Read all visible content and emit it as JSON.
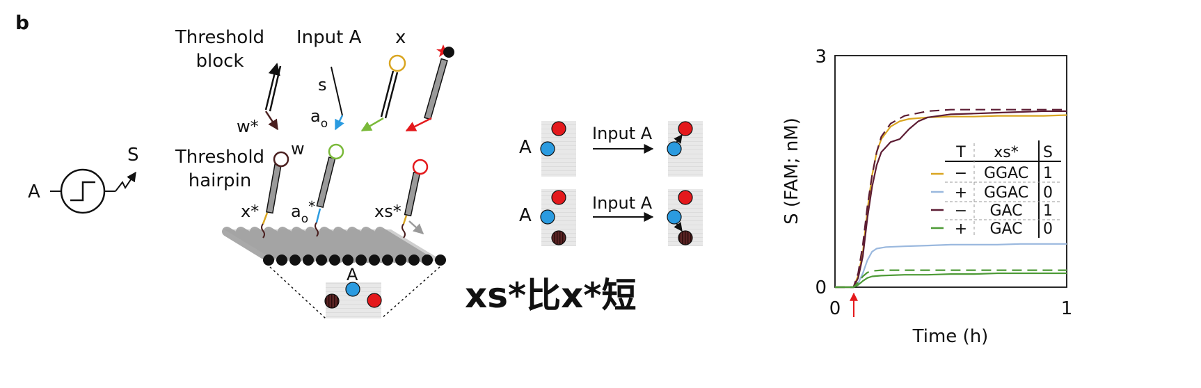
{
  "panel_label": "b",
  "diagram": {
    "input_symbol": "A",
    "output_symbol": "S",
    "threshold_block_lines": [
      "Threshold",
      "block"
    ],
    "input_a_title": "Input A",
    "x_title": "x",
    "s_label": "s",
    "a0_label": "a",
    "a0_sub": "o",
    "wstar_label": "w*",
    "threshold_hairpin_lines": [
      "Threshold",
      "hairpin"
    ],
    "w_label": "w",
    "xstar_label": "x*",
    "a0star_label": "a",
    "a0star_sub": "o",
    "a0star_sup": "*",
    "xsstar_label": "xs*",
    "origami_label": "A",
    "scheme_a_label": "A",
    "scheme_input_label": "Input A",
    "caption_cjk": "xs*比x*短"
  },
  "colors": {
    "blue": "#2b9be0",
    "red": "#e4191c",
    "dark_brown": "#4a1f1f",
    "gold": "#d9a520",
    "light_blue": "#9ab8de",
    "plum": "#5c1c33",
    "green": "#4d9a36",
    "lime": "#7ab93a",
    "gray_strand": "#9a9a9a",
    "panel_gray": "#e6e6e6"
  },
  "chart_data": {
    "type": "line",
    "title": "",
    "xlabel": "Time (h)",
    "ylabel": "S (FAM; nM)",
    "xlim": [
      0,
      1
    ],
    "ylim": [
      0,
      3
    ],
    "x_ticks": [
      "0",
      "1"
    ],
    "y_ticks": [
      "0",
      "3"
    ],
    "marker": "red arrow at t = 0.08 h",
    "table": {
      "headers": [
        "T",
        "xs*",
        "S"
      ],
      "rows": [
        {
          "T": "−",
          "xs": "GGAC",
          "S": "1",
          "color": "#d9a520"
        },
        {
          "T": "+",
          "xs": "GGAC",
          "S": "0",
          "color": "#9ab8de"
        },
        {
          "T": "−",
          "xs": "GAC",
          "S": "1",
          "color": "#5c1c33"
        },
        {
          "T": "+",
          "xs": "GAC",
          "S": "0",
          "color": "#4d9a36"
        }
      ]
    },
    "series": [
      {
        "color": "#d9a520",
        "style": "solid",
        "x": [
          0,
          0.08,
          0.1,
          0.12,
          0.14,
          0.16,
          0.18,
          0.2,
          0.24,
          0.28,
          0.32,
          0.4,
          0.5,
          0.6,
          0.7,
          0.8,
          0.9,
          1.0
        ],
        "y": [
          0,
          0,
          0.15,
          0.45,
          1.0,
          1.45,
          1.75,
          1.92,
          2.08,
          2.15,
          2.18,
          2.2,
          2.21,
          2.21,
          2.22,
          2.22,
          2.22,
          2.23
        ]
      },
      {
        "color": "#9ab8de",
        "style": "solid",
        "x": [
          0,
          0.08,
          0.1,
          0.12,
          0.14,
          0.16,
          0.18,
          0.22,
          0.3,
          0.4,
          0.5,
          0.6,
          0.7,
          0.8,
          0.9,
          1.0
        ],
        "y": [
          0,
          0,
          0.05,
          0.18,
          0.35,
          0.46,
          0.5,
          0.52,
          0.53,
          0.54,
          0.55,
          0.55,
          0.55,
          0.56,
          0.56,
          0.56
        ]
      },
      {
        "color": "#5c1c33",
        "style": "solid",
        "x": [
          0,
          0.08,
          0.1,
          0.12,
          0.14,
          0.16,
          0.18,
          0.2,
          0.24,
          0.28,
          0.32,
          0.36,
          0.4,
          0.5,
          0.6,
          0.7,
          0.8,
          0.9,
          1.0
        ],
        "y": [
          0,
          0,
          0.12,
          0.4,
          0.9,
          1.3,
          1.58,
          1.75,
          1.88,
          1.92,
          2.05,
          2.15,
          2.2,
          2.24,
          2.25,
          2.26,
          2.27,
          2.28,
          2.28
        ]
      },
      {
        "color": "#4d9a36",
        "style": "solid",
        "x": [
          0,
          0.08,
          0.1,
          0.12,
          0.14,
          0.16,
          0.2,
          0.3,
          0.4,
          0.5,
          0.6,
          0.7,
          0.8,
          0.9,
          1.0
        ],
        "y": [
          0,
          0,
          0.03,
          0.08,
          0.12,
          0.14,
          0.15,
          0.16,
          0.16,
          0.17,
          0.17,
          0.18,
          0.18,
          0.18,
          0.18
        ]
      },
      {
        "color": "#5c1c33",
        "style": "dashed",
        "x": [
          0,
          0.08,
          0.1,
          0.12,
          0.14,
          0.16,
          0.18,
          0.2,
          0.24,
          0.3,
          0.4,
          0.5,
          0.6,
          0.8,
          1.0
        ],
        "y": [
          0,
          0,
          0.18,
          0.55,
          1.05,
          1.45,
          1.75,
          1.95,
          2.12,
          2.22,
          2.28,
          2.3,
          2.3,
          2.3,
          2.3
        ]
      },
      {
        "color": "#4d9a36",
        "style": "dashed",
        "x": [
          0,
          0.08,
          0.1,
          0.12,
          0.14,
          0.16,
          0.2,
          0.3,
          0.5,
          0.8,
          1.0
        ],
        "y": [
          0,
          0,
          0.06,
          0.14,
          0.19,
          0.21,
          0.22,
          0.22,
          0.22,
          0.22,
          0.22
        ]
      }
    ]
  }
}
